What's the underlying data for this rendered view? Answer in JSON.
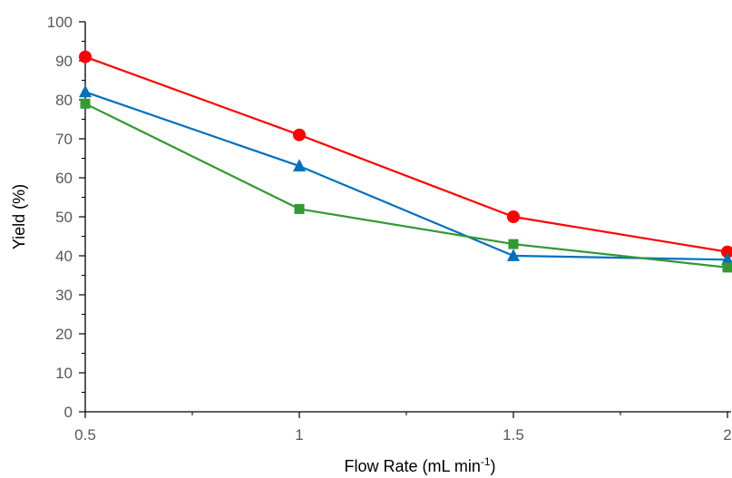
{
  "chart_data": {
    "type": "line",
    "xlabel": "Flow Rate (mL min",
    "xlabel_superscript": "-1",
    "xlabel_suffix": ")",
    "ylabel": "Yield (%)",
    "x": [
      0.5,
      1,
      1.5,
      2
    ],
    "x_tick_labels": [
      "0.5",
      "1",
      "1.5",
      "2"
    ],
    "xlim": [
      0.5,
      2
    ],
    "ylim": [
      0,
      100
    ],
    "y_ticks": [
      0,
      10,
      20,
      30,
      40,
      50,
      60,
      70,
      80,
      90,
      100
    ],
    "y_tick_labels": [
      "0",
      "10",
      "20",
      "30",
      "40",
      "50",
      "60",
      "70",
      "80",
      "90",
      "100"
    ],
    "grid": false,
    "series": [
      {
        "marker": "circle",
        "color": "#ff0000",
        "values": [
          91,
          71,
          50,
          41
        ]
      },
      {
        "marker": "triangle",
        "color": "#0070c0",
        "values": [
          82,
          63,
          40,
          39
        ]
      },
      {
        "marker": "square",
        "color": "#339933",
        "values": [
          79,
          52,
          43,
          37
        ]
      }
    ]
  }
}
